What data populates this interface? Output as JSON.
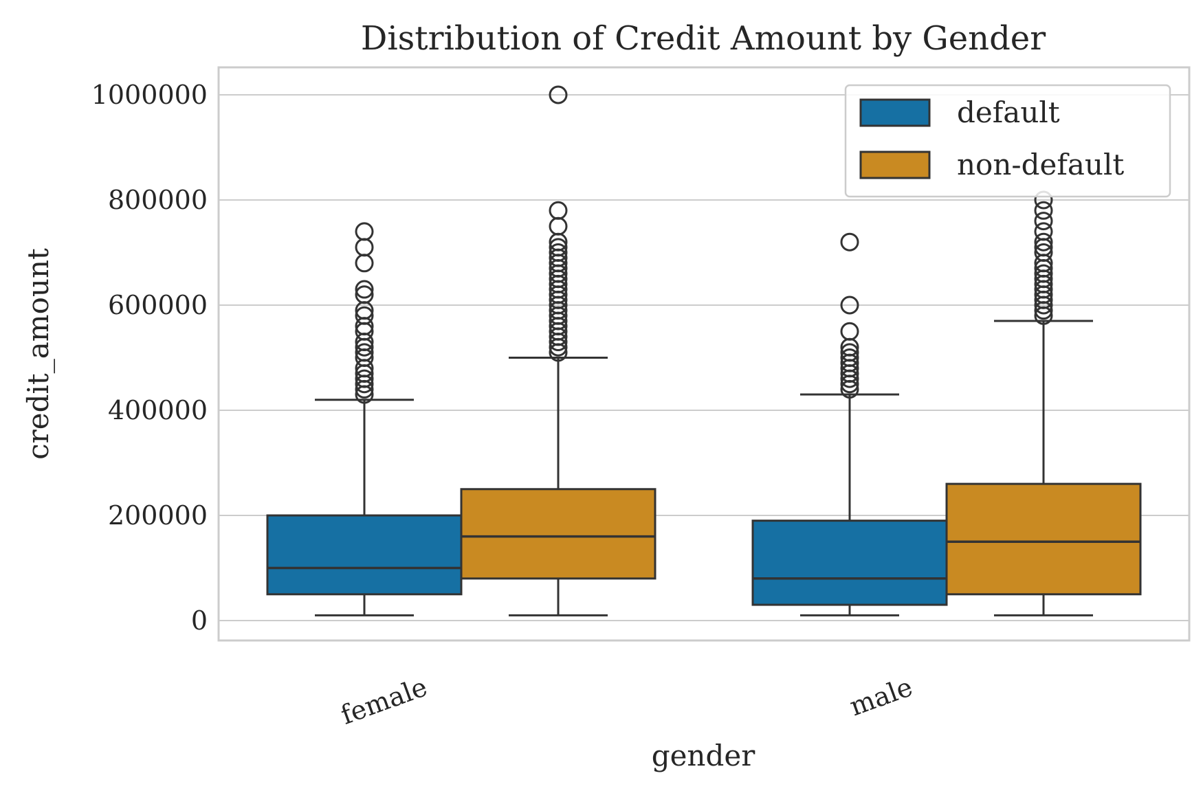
{
  "chart_data": {
    "type": "box",
    "title": "Distribution of Credit Amount by Gender",
    "xlabel": "gender",
    "ylabel": "credit_amount",
    "categories": [
      "female",
      "male"
    ],
    "ylim": [
      -40000,
      1050000
    ],
    "yticks": [
      0,
      200000,
      400000,
      600000,
      800000,
      1000000
    ],
    "ytick_labels": [
      "0",
      "200000",
      "400000",
      "600000",
      "800000",
      "1000000"
    ],
    "grid": true,
    "legend_position": "top-right",
    "colors": {
      "default": "#1670a3",
      "non-default": "#c98a22",
      "edge": "#333333"
    },
    "series": [
      {
        "name": "default",
        "boxes": [
          {
            "category": "female",
            "whisker_low": 10000,
            "q1": 50000,
            "median": 100000,
            "q3": 200000,
            "whisker_high": 420000,
            "outliers": [
              430000,
              440000,
              450000,
              460000,
              470000,
              480000,
              500000,
              510000,
              520000,
              530000,
              550000,
              560000,
              580000,
              590000,
              620000,
              630000,
              680000,
              710000,
              740000
            ]
          },
          {
            "category": "male",
            "whisker_low": 10000,
            "q1": 30000,
            "median": 80000,
            "q3": 190000,
            "whisker_high": 430000,
            "outliers": [
              440000,
              450000,
              460000,
              470000,
              480000,
              490000,
              500000,
              510000,
              520000,
              550000,
              600000,
              720000
            ]
          }
        ]
      },
      {
        "name": "non-default",
        "boxes": [
          {
            "category": "female",
            "whisker_low": 10000,
            "q1": 80000,
            "median": 160000,
            "q3": 250000,
            "whisker_high": 500000,
            "outliers": [
              510000,
              520000,
              530000,
              540000,
              550000,
              560000,
              570000,
              580000,
              590000,
              600000,
              610000,
              620000,
              630000,
              640000,
              650000,
              660000,
              670000,
              680000,
              690000,
              700000,
              710000,
              720000,
              750000,
              780000,
              1000000
            ]
          },
          {
            "category": "male",
            "whisker_low": 10000,
            "q1": 50000,
            "median": 150000,
            "q3": 260000,
            "whisker_high": 570000,
            "outliers": [
              580000,
              590000,
              600000,
              610000,
              620000,
              630000,
              640000,
              650000,
              660000,
              670000,
              680000,
              700000,
              710000,
              720000,
              740000,
              760000,
              780000,
              800000
            ]
          }
        ]
      }
    ]
  }
}
